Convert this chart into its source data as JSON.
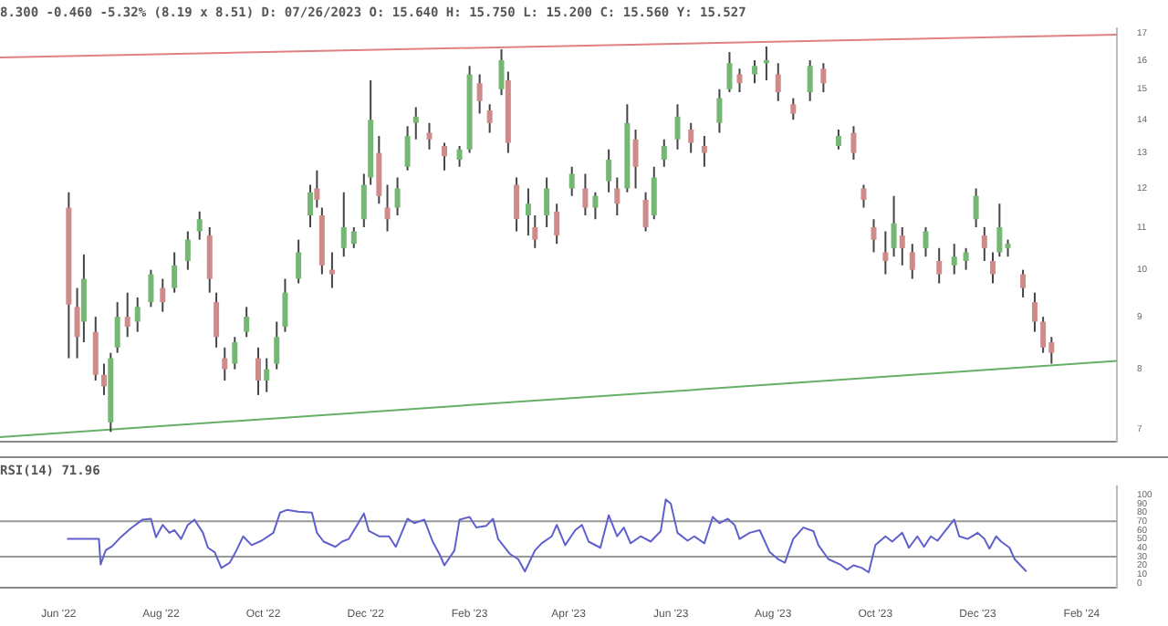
{
  "chart_data": [
    {
      "type": "candlestick",
      "title": "8.300 -0.460 -5.32% (8.19 x 8.51) D: 07/26/2023 O: 15.640 H: 15.750 L: 15.200 C: 15.560 Y: 15.527",
      "log": true,
      "tick_labels": "y",
      "xlim": [
        "2022-04-27",
        "2024-02-22"
      ],
      "ylim": [
        6.8,
        17.2
      ],
      "yticks": [
        7,
        8,
        9,
        10,
        11,
        12,
        13,
        14,
        15,
        16,
        17
      ],
      "x": [
        "2022-06-07",
        "2022-06-12",
        "2022-06-16",
        "2022-06-23",
        "2022-06-28",
        "2022-07-02",
        "2022-07-06",
        "2022-07-12",
        "2022-07-18",
        "2022-07-26",
        "2022-08-02",
        "2022-08-09",
        "2022-08-17",
        "2022-08-24",
        "2022-08-30",
        "2022-09-03",
        "2022-09-08",
        "2022-09-14",
        "2022-09-21",
        "2022-09-28",
        "2022-10-03",
        "2022-10-09",
        "2022-10-14",
        "2022-10-22",
        "2022-10-29",
        "2022-11-02",
        "2022-11-05",
        "2022-11-11",
        "2022-11-18",
        "2022-11-24",
        "2022-11-30",
        "2022-12-04",
        "2022-12-09",
        "2022-12-14",
        "2022-12-20",
        "2022-12-26",
        "2022-12-31",
        "2023-01-08",
        "2023-01-17",
        "2023-01-26",
        "2023-02-01",
        "2023-02-07",
        "2023-02-13",
        "2023-02-20",
        "2023-02-24",
        "2023-03-01",
        "2023-03-08",
        "2023-03-12",
        "2023-03-19",
        "2023-03-25",
        "2023-04-03",
        "2023-04-11",
        "2023-04-17",
        "2023-04-25",
        "2023-04-30",
        "2023-05-06",
        "2023-05-11",
        "2023-05-17",
        "2023-05-22",
        "2023-05-28",
        "2023-06-05",
        "2023-06-13",
        "2023-06-21",
        "2023-06-30",
        "2023-07-06",
        "2023-07-12",
        "2023-07-21",
        "2023-07-28",
        "2023-08-04",
        "2023-08-13",
        "2023-08-23",
        "2023-08-31",
        "2023-09-09",
        "2023-09-18",
        "2023-09-24",
        "2023-09-30",
        "2023-10-07",
        "2023-10-12",
        "2023-10-17",
        "2023-10-23",
        "2023-10-31",
        "2023-11-08",
        "2023-11-17",
        "2023-11-24",
        "2023-11-30",
        "2023-12-05",
        "2023-12-10",
        "2023-12-14",
        "2023-12-19",
        "2023-12-28",
        "2024-01-04",
        "2024-01-09",
        "2024-01-14"
      ],
      "ohlc": [
        [
          11.5,
          11.9,
          8.2,
          9.25
        ],
        [
          9.2,
          9.6,
          8.2,
          8.6
        ],
        [
          8.9,
          10.35,
          8.5,
          9.8
        ],
        [
          8.7,
          9.0,
          7.8,
          7.9
        ],
        [
          7.9,
          8.1,
          7.55,
          7.7
        ],
        [
          7.1,
          8.3,
          6.95,
          8.2
        ],
        [
          8.4,
          9.3,
          8.3,
          9.0
        ],
        [
          9.0,
          9.5,
          8.6,
          8.8
        ],
        [
          8.9,
          9.4,
          8.7,
          9.2
        ],
        [
          9.3,
          10.0,
          9.2,
          9.9
        ],
        [
          9.6,
          9.8,
          9.1,
          9.3
        ],
        [
          9.6,
          10.4,
          9.5,
          10.1
        ],
        [
          10.2,
          10.9,
          10.0,
          10.7
        ],
        [
          10.9,
          11.4,
          10.7,
          11.2
        ],
        [
          10.8,
          11.0,
          9.5,
          9.8
        ],
        [
          9.3,
          9.5,
          8.4,
          8.6
        ],
        [
          8.2,
          8.4,
          7.8,
          8.0
        ],
        [
          8.1,
          8.6,
          8.0,
          8.5
        ],
        [
          8.7,
          9.2,
          8.6,
          9.0
        ],
        [
          8.2,
          8.4,
          7.55,
          7.8
        ],
        [
          7.8,
          8.2,
          7.6,
          8.0
        ],
        [
          8.1,
          8.9,
          8.0,
          8.6
        ],
        [
          8.8,
          9.8,
          8.7,
          9.5
        ],
        [
          9.8,
          10.7,
          9.7,
          10.4
        ],
        [
          11.3,
          12.1,
          11.0,
          11.9
        ],
        [
          12.0,
          12.5,
          11.5,
          11.7
        ],
        [
          11.3,
          11.5,
          9.9,
          10.1
        ],
        [
          10.0,
          10.4,
          9.6,
          9.9
        ],
        [
          10.5,
          11.9,
          10.3,
          11.0
        ],
        [
          10.6,
          11.0,
          10.5,
          10.9
        ],
        [
          11.2,
          12.4,
          11.0,
          12.1
        ],
        [
          12.3,
          15.3,
          12.1,
          14.0
        ],
        [
          13.0,
          13.5,
          11.6,
          11.8
        ],
        [
          11.5,
          12.1,
          10.9,
          11.2
        ],
        [
          11.5,
          12.3,
          11.3,
          12.0
        ],
        [
          12.6,
          13.8,
          12.5,
          13.5
        ],
        [
          13.9,
          14.4,
          13.4,
          14.1
        ],
        [
          13.6,
          13.9,
          13.1,
          13.4
        ],
        [
          13.2,
          13.3,
          12.5,
          12.9
        ],
        [
          12.8,
          13.2,
          12.6,
          13.1
        ],
        [
          13.1,
          15.8,
          13.0,
          15.5
        ],
        [
          15.2,
          15.5,
          14.2,
          14.6
        ],
        [
          14.3,
          14.5,
          13.6,
          13.9
        ],
        [
          15.0,
          16.4,
          14.8,
          16.0
        ],
        [
          15.3,
          15.6,
          13.0,
          13.3
        ],
        [
          12.1,
          12.3,
          10.9,
          11.2
        ],
        [
          11.3,
          12.0,
          10.8,
          11.6
        ],
        [
          11.0,
          11.3,
          10.5,
          10.7
        ],
        [
          11.3,
          12.3,
          11.0,
          12.0
        ],
        [
          11.4,
          11.6,
          10.6,
          10.8
        ],
        [
          12.0,
          12.6,
          11.8,
          12.4
        ],
        [
          12.0,
          12.4,
          11.3,
          11.5
        ],
        [
          11.5,
          11.9,
          11.2,
          11.8
        ],
        [
          12.2,
          13.1,
          11.9,
          12.8
        ],
        [
          12.0,
          12.3,
          11.3,
          11.6
        ],
        [
          12.0,
          14.5,
          11.9,
          13.9
        ],
        [
          13.4,
          13.7,
          12.0,
          12.6
        ],
        [
          11.7,
          11.9,
          10.9,
          11.0
        ],
        [
          11.3,
          12.6,
          11.2,
          12.3
        ],
        [
          12.8,
          13.4,
          12.6,
          13.2
        ],
        [
          13.4,
          14.5,
          13.1,
          14.1
        ],
        [
          13.7,
          13.9,
          13.0,
          13.3
        ],
        [
          13.2,
          13.5,
          12.6,
          13.0
        ],
        [
          13.9,
          15.0,
          13.6,
          14.7
        ],
        [
          15.0,
          16.3,
          14.9,
          15.9
        ],
        [
          15.5,
          15.7,
          14.9,
          15.2
        ],
        [
          15.5,
          16.0,
          15.2,
          15.8
        ],
        [
          15.9,
          16.5,
          15.3,
          16.0
        ],
        [
          15.5,
          15.9,
          14.6,
          14.9
        ],
        [
          14.5,
          14.7,
          14.0,
          14.2
        ],
        [
          14.9,
          16.0,
          14.6,
          15.8
        ],
        [
          15.7,
          15.9,
          14.9,
          15.2
        ],
        [
          13.2,
          13.7,
          13.1,
          13.5
        ],
        [
          13.6,
          13.8,
          12.8,
          13.0
        ],
        [
          12.0,
          12.1,
          11.5,
          11.7
        ],
        [
          11.0,
          11.2,
          10.4,
          10.7
        ],
        [
          10.4,
          10.9,
          9.9,
          10.2
        ],
        [
          10.5,
          11.8,
          10.3,
          11.1
        ],
        [
          10.8,
          11.0,
          10.1,
          10.5
        ],
        [
          10.4,
          10.6,
          9.8,
          10.0
        ],
        [
          10.5,
          11.0,
          10.3,
          10.9
        ],
        [
          10.2,
          10.5,
          9.7,
          9.9
        ],
        [
          10.1,
          10.6,
          9.9,
          10.3
        ],
        [
          10.2,
          10.5,
          10.0,
          10.4
        ],
        [
          11.2,
          12.0,
          11.0,
          11.8
        ],
        [
          10.8,
          11.0,
          10.2,
          10.5
        ],
        [
          10.2,
          10.4,
          9.7,
          9.9
        ],
        [
          10.4,
          11.6,
          10.3,
          11.0
        ],
        [
          10.5,
          10.7,
          10.3,
          10.6
        ],
        [
          9.9,
          10.0,
          9.4,
          9.6
        ],
        [
          9.3,
          9.5,
          8.7,
          8.9
        ],
        [
          8.9,
          9.0,
          8.3,
          8.4
        ],
        [
          8.5,
          8.6,
          8.1,
          8.3
        ]
      ],
      "series": [
        {
          "type": "line",
          "color": "#e08080",
          "x": [
            "2022-04-27",
            "2024-02-22"
          ],
          "values": [
            16.1,
            16.95
          ]
        },
        {
          "type": "line",
          "color": "#66b066",
          "x": [
            "2022-04-27",
            "2024-02-22"
          ],
          "values": [
            6.87,
            8.15
          ]
        }
      ]
    },
    {
      "type": "line",
      "title": "RSI(14) 71.96",
      "color": "#6060cc",
      "xlim": [
        "2022-04-27",
        "2024-02-22"
      ],
      "ylim": [
        -5,
        110
      ],
      "yticks": [
        0,
        10,
        20,
        30,
        40,
        50,
        60,
        70,
        80,
        90,
        100
      ],
      "xticks": [
        {
          "value": "2022-06-01",
          "label": "Jun '22"
        },
        {
          "value": "2022-08-01",
          "label": "Aug '22"
        },
        {
          "value": "2022-10-01",
          "label": "Oct '22"
        },
        {
          "value": "2022-12-01",
          "label": "Dec '22"
        },
        {
          "value": "2023-02-01",
          "label": "Feb '23"
        },
        {
          "value": "2023-04-01",
          "label": "Apr '23"
        },
        {
          "value": "2023-06-01",
          "label": "Jun '23"
        },
        {
          "value": "2023-08-01",
          "label": "Aug '23"
        },
        {
          "value": "2023-10-01",
          "label": "Oct '23"
        },
        {
          "value": "2023-12-01",
          "label": "Dec '23"
        },
        {
          "value": "2024-02-01",
          "label": "Feb '24"
        }
      ],
      "ref_lines": [
        {
          "axis": "y",
          "value": 70,
          "color": "#999999"
        },
        {
          "axis": "y",
          "value": 30,
          "color": "#999999"
        }
      ],
      "x": [
        "2022-06-06",
        "2022-06-25",
        "2022-06-26",
        "2022-06-29",
        "2022-07-03",
        "2022-07-08",
        "2022-07-14",
        "2022-07-21",
        "2022-07-26",
        "2022-07-29",
        "2022-08-02",
        "2022-08-06",
        "2022-08-09",
        "2022-08-13",
        "2022-08-17",
        "2022-08-21",
        "2022-08-26",
        "2022-08-29",
        "2022-09-02",
        "2022-09-06",
        "2022-09-11",
        "2022-09-15",
        "2022-09-19",
        "2022-09-24",
        "2022-09-30",
        "2022-10-07",
        "2022-10-11",
        "2022-10-15",
        "2022-10-22",
        "2022-10-30",
        "2022-11-02",
        "2022-11-06",
        "2022-11-13",
        "2022-11-17",
        "2022-11-21",
        "2022-11-26",
        "2022-11-30",
        "2022-12-03",
        "2022-12-09",
        "2022-12-15",
        "2022-12-19",
        "2022-12-26",
        "2022-12-30",
        "2023-01-05",
        "2023-01-10",
        "2023-01-14",
        "2023-01-17",
        "2023-01-23",
        "2023-01-26",
        "2023-02-01",
        "2023-02-05",
        "2023-02-11",
        "2023-02-15",
        "2023-02-18",
        "2023-02-25",
        "2023-03-02",
        "2023-03-06",
        "2023-03-12",
        "2023-03-16",
        "2023-03-22",
        "2023-03-25",
        "2023-03-30",
        "2023-04-05",
        "2023-04-09",
        "2023-04-13",
        "2023-04-20",
        "2023-04-25",
        "2023-04-30",
        "2023-05-04",
        "2023-05-08",
        "2023-05-14",
        "2023-05-20",
        "2023-05-26",
        "2023-05-29",
        "2023-06-01",
        "2023-06-05",
        "2023-06-11",
        "2023-06-15",
        "2023-06-21",
        "2023-06-26",
        "2023-06-30",
        "2023-07-05",
        "2023-07-09",
        "2023-07-12",
        "2023-07-18",
        "2023-07-24",
        "2023-07-30",
        "2023-08-04",
        "2023-08-08",
        "2023-08-13",
        "2023-08-19",
        "2023-08-25",
        "2023-08-28",
        "2023-09-03",
        "2023-09-10",
        "2023-09-14",
        "2023-09-18",
        "2023-09-23",
        "2023-09-27",
        "2023-10-01",
        "2023-10-07",
        "2023-10-11",
        "2023-10-17",
        "2023-10-21",
        "2023-10-26",
        "2023-10-30",
        "2023-11-03",
        "2023-11-07",
        "2023-11-12",
        "2023-11-17",
        "2023-11-20",
        "2023-11-25",
        "2023-12-01",
        "2023-12-05",
        "2023-12-08",
        "2023-12-12",
        "2023-12-15",
        "2023-12-20",
        "2023-12-23",
        "2023-12-26",
        "2023-12-30"
      ],
      "values": [
        50,
        50,
        21,
        37,
        42,
        52,
        62,
        72,
        73,
        52,
        66,
        57,
        60,
        50,
        66,
        72,
        57,
        40,
        35,
        17,
        23,
        37,
        53,
        43,
        48,
        57,
        80,
        83,
        81,
        80,
        57,
        47,
        41,
        47,
        50,
        66,
        79,
        59,
        53,
        53,
        41,
        73,
        68,
        72,
        47,
        33,
        20,
        37,
        72,
        75,
        63,
        65,
        73,
        50,
        33,
        27,
        13,
        37,
        45,
        53,
        66,
        43,
        60,
        66,
        47,
        40,
        77,
        53,
        63,
        45,
        53,
        47,
        59,
        95,
        90,
        57,
        48,
        53,
        45,
        75,
        68,
        73,
        66,
        50,
        57,
        60,
        35,
        27,
        23,
        50,
        63,
        59,
        43,
        27,
        21,
        15,
        20,
        17,
        12,
        43,
        53,
        47,
        57,
        40,
        53,
        41,
        53,
        48,
        60,
        72,
        53,
        50,
        57,
        50,
        39,
        53,
        47,
        40,
        27,
        21,
        13
      ]
    }
  ]
}
